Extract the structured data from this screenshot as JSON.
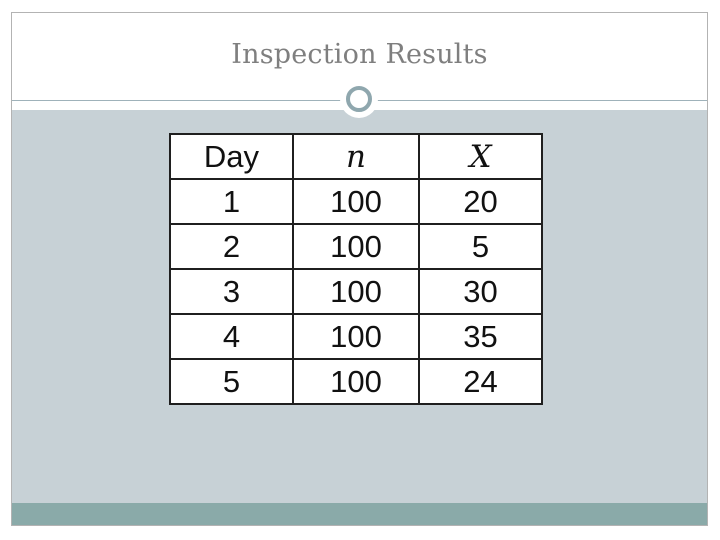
{
  "slide": {
    "title": "Inspection Results"
  },
  "table": {
    "headers": [
      "Day",
      "n",
      "X"
    ],
    "rows": [
      [
        "1",
        "100",
        "20"
      ],
      [
        "2",
        "100",
        "5"
      ],
      [
        "3",
        "100",
        "30"
      ],
      [
        "4",
        "100",
        "35"
      ],
      [
        "5",
        "100",
        "24"
      ]
    ]
  },
  "colors": {
    "title_text": "#7f7f7f",
    "content_background": "#c7d1d6",
    "footer_band": "#8aaaa9",
    "ornament_ring": "#8fa7ae"
  }
}
